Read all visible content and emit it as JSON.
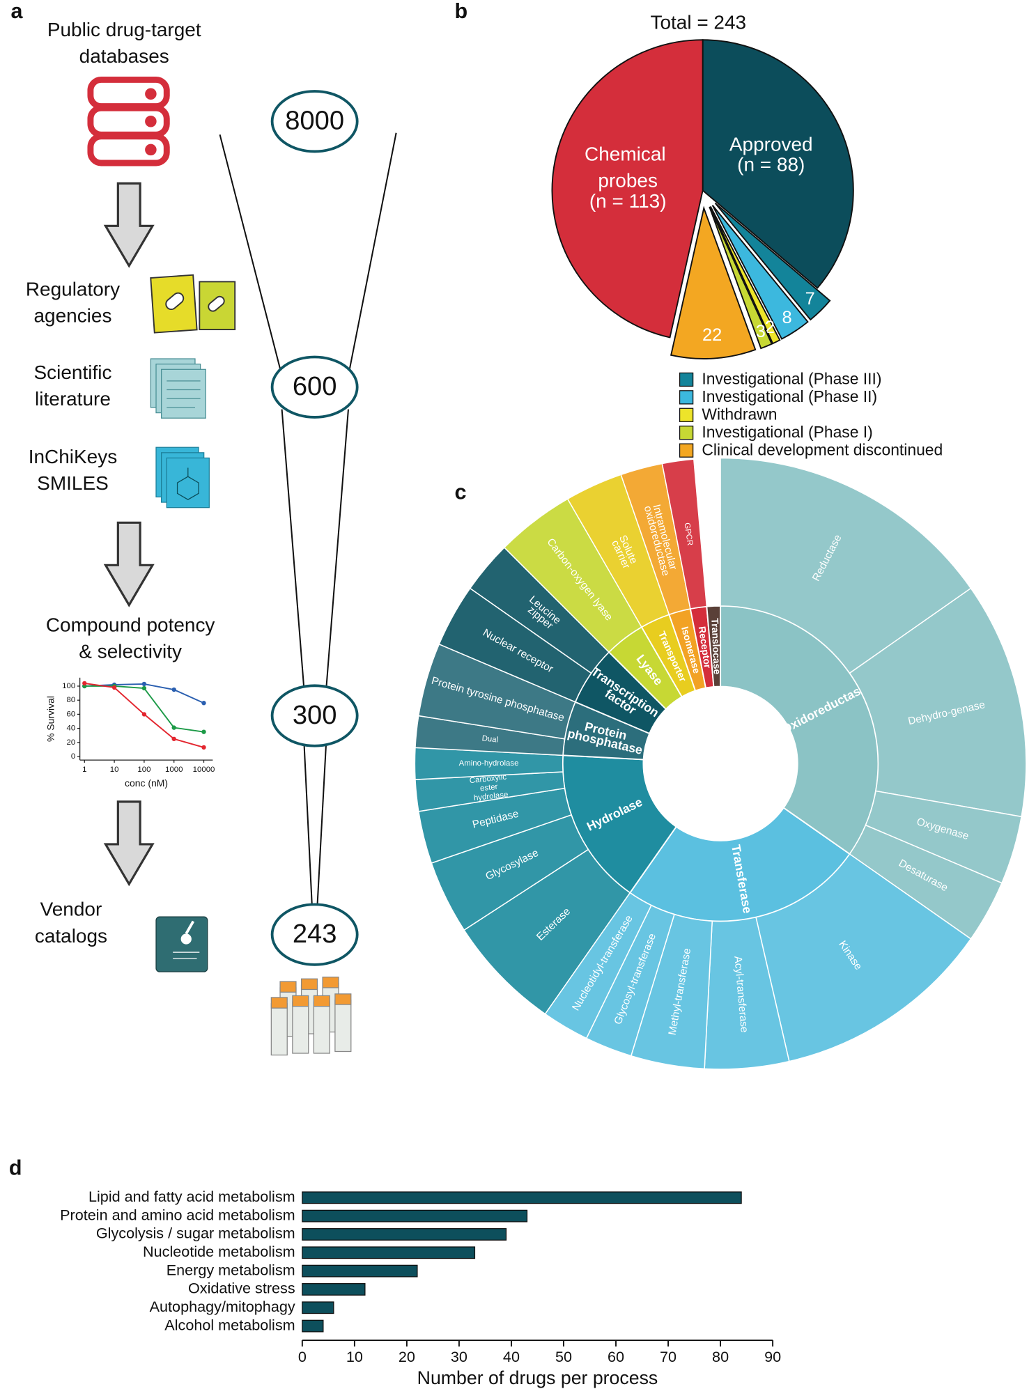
{
  "panel_labels": [
    "a",
    "b",
    "c",
    "d"
  ],
  "panel_a": {
    "steps": [
      [
        "Public drug-target",
        "databases"
      ],
      [
        "Regulatory",
        "agencies"
      ],
      [
        "Scientific",
        "literature"
      ],
      [
        "InChiKeys",
        "SMILES"
      ],
      [
        "Compound potency",
        "& selectivity"
      ],
      [
        "Vendor",
        "catalogs"
      ]
    ],
    "counts": [
      8000,
      600,
      300,
      243
    ]
  },
  "chart_data": [
    {
      "type": "line",
      "xlabel": "conc (nM)",
      "ylabel": "% Survival",
      "xscale": "log",
      "x": [
        1,
        10,
        100,
        1000,
        10000
      ],
      "xlim": [
        0.7,
        20000
      ],
      "ylim": [
        -5,
        112
      ],
      "xticks": [
        1,
        10,
        100,
        1000,
        10000
      ],
      "yticks": [
        0,
        20,
        40,
        60,
        80,
        100
      ],
      "series": [
        {
          "color": "#2a5fb0",
          "values": [
            100,
            102,
            103,
            95,
            76
          ]
        },
        {
          "color": "#1c9a47",
          "values": [
            100,
            100,
            97,
            41,
            35
          ]
        },
        {
          "color": "#e3262f",
          "values": [
            104,
            98,
            60,
            25,
            13
          ]
        }
      ]
    },
    {
      "type": "pie",
      "title": "Total = 243",
      "categories": [
        "Approved",
        "Investigational (Phase III)",
        "Investigational (Phase II)",
        "Withdrawn",
        "Investigational (Phase I)",
        "Clinical development discontinued",
        "Chemical probes"
      ],
      "values": [
        88,
        7,
        8,
        2,
        3,
        22,
        113
      ],
      "value_labels": [
        "(n = 88)",
        "7",
        "8",
        "2",
        "3",
        "22",
        "(n = 113)"
      ],
      "colors": [
        "#0c4d5b",
        "#13849a",
        "#3cb8de",
        "#ede42a",
        "#c7d834",
        "#f3a722",
        "#d42e3b"
      ]
    },
    {
      "type": "sunburst",
      "categories": [
        "Oxidoreductase",
        "Transferase",
        "Hydrolase",
        "Protein phosphatase",
        "Transcription factor",
        "Lyase",
        "Transporter",
        "Isomerase",
        "Receptor",
        "Translocase"
      ],
      "values": [
        125,
        90,
        58,
        20,
        22,
        15,
        11,
        8,
        6,
        5
      ],
      "colors": [
        "#8bc3c5",
        "#5bc0e0",
        "#1f8da0",
        "#2c6e7c",
        "#0f5664",
        "#c7d834",
        "#e8cd1f",
        "#f2a224",
        "#d42e3b",
        "#5a4038"
      ],
      "subcategories": [
        {
          "names": [
            "Reductase",
            "Dehydro-genase",
            "Oxygenase",
            "Desaturase"
          ],
          "values": [
            55,
            45,
            13,
            12
          ]
        },
        {
          "names": [
            "Kinase",
            "Acyl-transferase",
            "Methyl-transferase",
            "Glycosyl-transferase",
            "Nucleotidyl-transferase"
          ],
          "values": [
            42,
            16,
            14,
            9,
            9
          ]
        },
        {
          "names": [
            "Esterase",
            "Glycosylase",
            "Peptidase",
            "Carboxylic ester hydrolase",
            "Amino-hydrolase"
          ],
          "values": [
            22,
            14,
            10,
            6,
            6
          ]
        },
        {
          "names": [
            "Dual",
            "Protein tyrosine phosphatase"
          ],
          "values": [
            6,
            14
          ]
        },
        {
          "names": [
            "Nuclear receptor",
            "Leucine zipper"
          ],
          "values": [
            12,
            10
          ]
        },
        {
          "names": [
            "Carbon-oxygen lyase"
          ],
          "values": [
            15
          ]
        },
        {
          "names": [
            "Solute carrier"
          ],
          "values": [
            11
          ]
        },
        {
          "names": [
            "Intramolecular oxidoreductase"
          ],
          "values": [
            8
          ]
        },
        {
          "names": [
            "GPCR"
          ],
          "values": [
            6
          ]
        },
        {
          "names": [],
          "values": []
        }
      ]
    },
    {
      "type": "bar",
      "orientation": "horizontal",
      "categories": [
        "Lipid and fatty acid metabolism",
        "Protein and amino acid metabolism",
        "Glycolysis / sugar metabolism",
        "Nucleotide metabolism",
        "Energy metabolism",
        "Oxidative stress",
        "Autophagy/mitophagy",
        "Alcohol metabolism"
      ],
      "values": [
        84,
        43,
        39,
        33,
        22,
        12,
        6,
        4
      ],
      "color": "#0d4f5c",
      "xlabel": "Number of drugs per process",
      "xlim": [
        0,
        90
      ],
      "xticks": [
        0,
        10,
        20,
        30,
        40,
        50,
        60,
        70,
        80,
        90
      ]
    }
  ]
}
